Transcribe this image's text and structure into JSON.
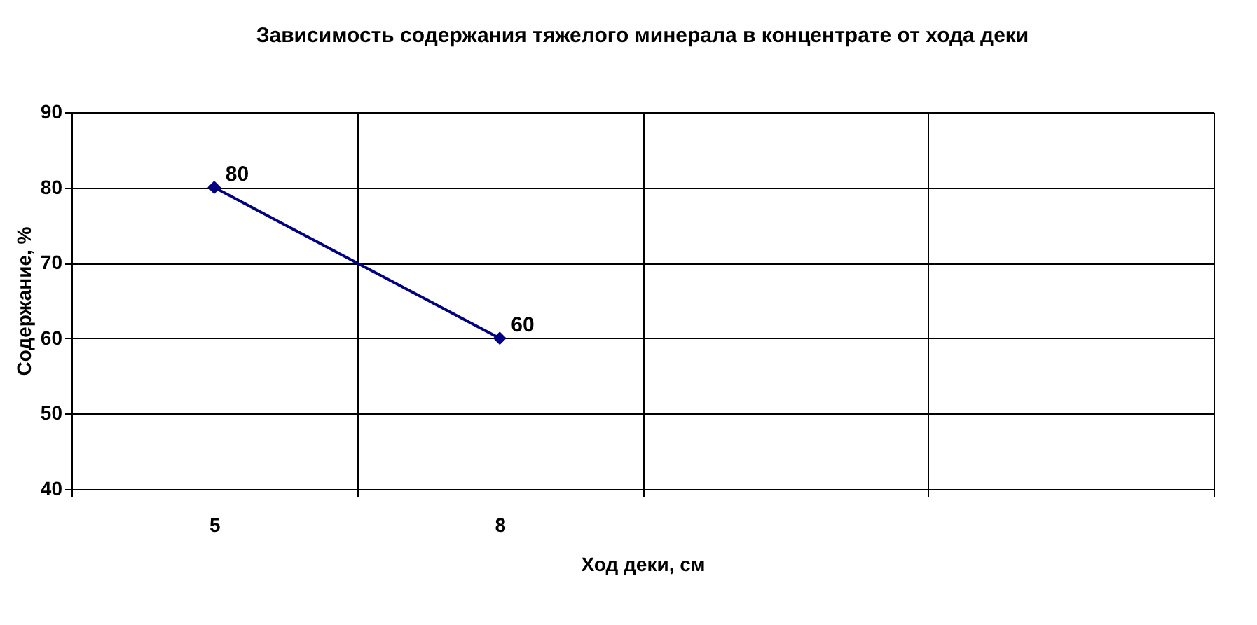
{
  "chart_data": {
    "type": "line",
    "title": "Зависимость содержания тяжелого минерала в концентрате от хода деки",
    "xlabel": "Ход деки, см",
    "ylabel": "Содержание, %",
    "categories": [
      "5",
      "8",
      null,
      null
    ],
    "series": [
      {
        "color": "#000080",
        "values": [
          80,
          60,
          null,
          null
        ]
      }
    ],
    "ylim": [
      40,
      90
    ],
    "yticks": [
      40,
      50,
      60,
      70,
      80,
      90
    ],
    "grid": true,
    "marker": "diamond",
    "line_style": "solid",
    "data_labels": true
  }
}
